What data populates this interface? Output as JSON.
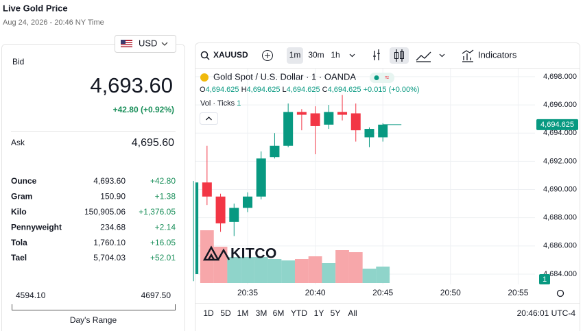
{
  "header": {
    "title": "Live Gold Price",
    "date": "Aug 24, 2026 - 20:46 NY Time",
    "currency": "USD"
  },
  "quote": {
    "bid_label": "Bid",
    "bid": "4,693.60",
    "change": "+42.80 (+0.92%)",
    "ask_label": "Ask",
    "ask": "4,695.60",
    "units": [
      {
        "name": "Ounce",
        "price": "4,693.60",
        "change": "+42.80"
      },
      {
        "name": "Gram",
        "price": "150.90",
        "change": "+1.38"
      },
      {
        "name": "Kilo",
        "price": "150,905.06",
        "change": "+1,376.05"
      },
      {
        "name": "Pennyweight",
        "price": "234.68",
        "change": "+2.14"
      },
      {
        "name": "Tola",
        "price": "1,760.10",
        "change": "+16.05"
      },
      {
        "name": "Tael",
        "price": "5,704.03",
        "change": "+52.01"
      }
    ],
    "range_low": "4594.10",
    "range_high": "4697.50",
    "range_label": "Day's Range"
  },
  "toolbar": {
    "symbol": "XAUUSD",
    "intervals": [
      "1m",
      "30m",
      "1h"
    ],
    "indicators": "Indicators"
  },
  "chart_data": {
    "type": "candlestick",
    "title": "Gold Spot / U.S. Dollar · 1 · OANDA",
    "ohlc_legend": [
      {
        "label": "O",
        "value": "4,694.625"
      },
      {
        "label": "H",
        "value": "4,694.625"
      },
      {
        "label": "L",
        "value": "4,694.625"
      },
      {
        "label": "C",
        "value": "4,694.625"
      }
    ],
    "legend_change": "+0.015 (+0.00%)",
    "volume_label": "Vol · Ticks",
    "volume_last": "1",
    "watermark": "KITCO",
    "last_price": "4,694.625",
    "up_color": "#089981",
    "down_color": "#f23645",
    "up_volume_color": "#8fd4ca",
    "down_volume_color": "#f7a7aa",
    "candles": [
      {
        "time": "20:31",
        "open": 4684.0,
        "high": 4690.6,
        "low": 4683.5,
        "close": 4690.5
      },
      {
        "time": "20:32",
        "open": 4690.5,
        "high": 4693.1,
        "low": 4688.9,
        "close": 4689.5,
        "volume": 77
      },
      {
        "time": "20:33",
        "open": 4689.5,
        "high": 4689.7,
        "low": 4687.0,
        "close": 4687.6,
        "volume": 53
      },
      {
        "time": "20:34",
        "open": 4687.7,
        "high": 4689.0,
        "low": 4686.7,
        "close": 4688.7,
        "volume": 38
      },
      {
        "time": "20:35",
        "open": 4688.7,
        "high": 4689.8,
        "low": 4688.4,
        "close": 4689.5,
        "volume": 38
      },
      {
        "time": "20:36",
        "open": 4689.5,
        "high": 4692.7,
        "low": 4689.3,
        "close": 4692.2,
        "volume": 38
      },
      {
        "time": "20:37",
        "open": 4692.3,
        "high": 4694.0,
        "low": 4692.2,
        "close": 4693.1,
        "volume": 35
      },
      {
        "time": "20:38",
        "open": 4693.1,
        "high": 4696.1,
        "low": 4693.0,
        "close": 4695.5,
        "volume": 33
      },
      {
        "time": "20:39",
        "open": 4695.5,
        "high": 4695.7,
        "low": 4694.2,
        "close": 4695.3,
        "volume": 35
      },
      {
        "time": "20:40",
        "open": 4695.4,
        "high": 4695.9,
        "low": 4692.5,
        "close": 4694.5,
        "volume": 39
      },
      {
        "time": "20:41",
        "open": 4694.6,
        "high": 4696.0,
        "low": 4694.3,
        "close": 4695.5,
        "volume": 29
      },
      {
        "time": "20:42",
        "open": 4695.5,
        "high": 4696.7,
        "low": 4694.9,
        "close": 4695.3,
        "volume": 48
      },
      {
        "time": "20:43",
        "open": 4695.4,
        "high": 4696.1,
        "low": 4693.4,
        "close": 4694.2,
        "volume": 45
      },
      {
        "time": "20:44",
        "open": 4693.7,
        "high": 4694.4,
        "low": 4693.0,
        "close": 4694.3,
        "volume": 21
      },
      {
        "time": "20:45",
        "open": 4693.7,
        "high": 4694.7,
        "low": 4693.4,
        "close": 4694.6,
        "volume": 24
      }
    ],
    "ylim": [
      4683.27,
      4698.58
    ],
    "yticks": [
      {
        "value": 4698,
        "label": "4,698.000"
      },
      {
        "value": 4696,
        "label": "4,696.000"
      },
      {
        "value": 4694,
        "label": "4,694.000"
      },
      {
        "value": 4692,
        "label": "4,692.000"
      },
      {
        "value": 4690,
        "label": "4,690.000"
      },
      {
        "value": 4688,
        "label": "4,688.000"
      },
      {
        "value": 4686,
        "label": "4,686.000"
      },
      {
        "value": 4684,
        "label": "4,684.000"
      }
    ],
    "xticks": [
      "20:35",
      "20:40",
      "20:45",
      "20:50",
      "20:55"
    ],
    "grid": true
  },
  "footer": {
    "ranges": [
      "1D",
      "5D",
      "1M",
      "3M",
      "6M",
      "YTD",
      "1Y",
      "5Y",
      "All"
    ],
    "clock": "20:46:01 UTC-4"
  }
}
